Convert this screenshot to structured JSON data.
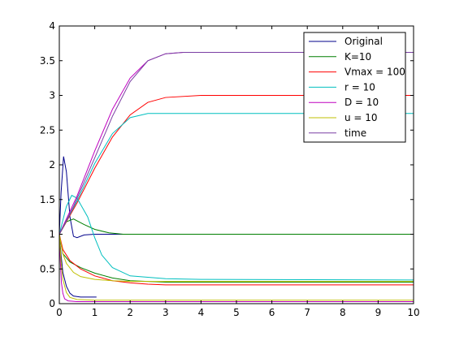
{
  "chart_data": {
    "type": "line",
    "title": "",
    "xlabel": "",
    "ylabel": "",
    "xlim": [
      0,
      10
    ],
    "ylim": [
      0,
      4
    ],
    "grid": false,
    "legend_position": "top-right",
    "x_ticks": [
      "0",
      "1",
      "2",
      "3",
      "4",
      "5",
      "6",
      "7",
      "8",
      "9",
      "10"
    ],
    "y_ticks": [
      "0",
      "0.5",
      "1",
      "1.5",
      "2",
      "2.5",
      "3",
      "3.5",
      "4"
    ],
    "series": [
      {
        "name": "Original",
        "color": "#00008b",
        "points": [
          [
            [
              0,
              1
            ],
            [
              0.05,
              1.6
            ],
            [
              0.12,
              2.12
            ],
            [
              0.2,
              1.9
            ],
            [
              0.3,
              1.25
            ],
            [
              0.4,
              0.97
            ],
            [
              0.5,
              0.95
            ],
            [
              0.7,
              0.99
            ],
            [
              1,
              1
            ],
            [
              10,
              1
            ]
          ],
          [
            [
              0,
              1
            ],
            [
              0.05,
              0.7
            ],
            [
              0.1,
              0.45
            ],
            [
              0.2,
              0.25
            ],
            [
              0.3,
              0.15
            ],
            [
              0.4,
              0.11
            ],
            [
              0.6,
              0.095
            ],
            [
              1.05,
              0.095
            ]
          ]
        ]
      },
      {
        "name": "K=10",
        "color": "#007f00",
        "points": [
          [
            [
              0,
              1
            ],
            [
              0.2,
              1.18
            ],
            [
              0.4,
              1.22
            ],
            [
              0.7,
              1.14
            ],
            [
              1,
              1.07
            ],
            [
              1.4,
              1.02
            ],
            [
              1.8,
              1.0
            ],
            [
              10,
              1.0
            ]
          ],
          [
            [
              0,
              1
            ],
            [
              0.1,
              0.72
            ],
            [
              0.3,
              0.6
            ],
            [
              0.6,
              0.52
            ],
            [
              1,
              0.44
            ],
            [
              1.5,
              0.37
            ],
            [
              2,
              0.33
            ],
            [
              3,
              0.31
            ],
            [
              5,
              0.31
            ],
            [
              10,
              0.31
            ]
          ]
        ]
      },
      {
        "name": "Vmax = 100",
        "color": "#ff0000",
        "points": [
          [
            [
              0,
              1
            ],
            [
              0.5,
              1.45
            ],
            [
              1,
              1.95
            ],
            [
              1.5,
              2.4
            ],
            [
              2,
              2.72
            ],
            [
              2.5,
              2.9
            ],
            [
              3,
              2.97
            ],
            [
              4,
              3.0
            ],
            [
              10,
              3.0
            ]
          ],
          [
            [
              0,
              1
            ],
            [
              0.1,
              0.78
            ],
            [
              0.3,
              0.62
            ],
            [
              0.6,
              0.5
            ],
            [
              1,
              0.4
            ],
            [
              1.5,
              0.33
            ],
            [
              2,
              0.3
            ],
            [
              2.5,
              0.28
            ],
            [
              3,
              0.27
            ],
            [
              10,
              0.27
            ]
          ]
        ]
      },
      {
        "name": "r = 10",
        "color": "#00bfbf",
        "points": [
          [
            [
              0,
              1
            ],
            [
              0.5,
              1.48
            ],
            [
              1,
              2.02
            ],
            [
              1.5,
              2.45
            ],
            [
              2,
              2.68
            ],
            [
              2.5,
              2.74
            ],
            [
              3,
              2.74
            ],
            [
              10,
              2.74
            ]
          ],
          [
            [
              0,
              1
            ],
            [
              0.2,
              1.4
            ],
            [
              0.35,
              1.56
            ],
            [
              0.5,
              1.52
            ],
            [
              0.8,
              1.25
            ],
            [
              1,
              0.95
            ],
            [
              1.2,
              0.7
            ],
            [
              1.5,
              0.52
            ],
            [
              2,
              0.4
            ],
            [
              3,
              0.36
            ],
            [
              4,
              0.35
            ],
            [
              10,
              0.34
            ]
          ]
        ]
      },
      {
        "name": "D = 10",
        "color": "#bf00bf",
        "points": [
          [
            [
              0,
              1
            ],
            [
              0.5,
              1.55
            ],
            [
              1,
              2.2
            ],
            [
              1.5,
              2.8
            ],
            [
              2,
              3.25
            ],
            [
              2.5,
              3.5
            ],
            [
              3,
              3.6
            ],
            [
              3.5,
              3.62
            ],
            [
              10,
              3.62
            ]
          ],
          [
            [
              0,
              1
            ],
            [
              0.03,
              0.6
            ],
            [
              0.06,
              0.3
            ],
            [
              0.1,
              0.15
            ],
            [
              0.15,
              0.07
            ],
            [
              0.25,
              0.04
            ],
            [
              0.5,
              0.03
            ],
            [
              10,
              0.03
            ]
          ]
        ]
      },
      {
        "name": "u = 10",
        "color": "#bfbf00",
        "points": [
          [
            [
              0,
              1
            ],
            [
              0.1,
              0.72
            ],
            [
              0.2,
              0.58
            ],
            [
              0.4,
              0.45
            ],
            [
              0.6,
              0.39
            ],
            [
              1,
              0.35
            ],
            [
              1.5,
              0.33
            ],
            [
              2,
              0.32
            ],
            [
              10,
              0.32
            ]
          ],
          [
            [
              0,
              1
            ],
            [
              0.05,
              0.6
            ],
            [
              0.1,
              0.35
            ],
            [
              0.2,
              0.16
            ],
            [
              0.3,
              0.09
            ],
            [
              0.5,
              0.06
            ],
            [
              1,
              0.05
            ],
            [
              10,
              0.05
            ]
          ]
        ]
      },
      {
        "name": "time",
        "color": "#7a3fa3",
        "points": [
          [
            [
              0,
              1
            ],
            [
              0.4,
              1.4
            ],
            [
              1,
              2.1
            ],
            [
              1.5,
              2.7
            ],
            [
              2,
              3.2
            ],
            [
              2.5,
              3.5
            ],
            [
              3,
              3.6
            ],
            [
              3.5,
              3.62
            ],
            [
              10,
              3.62
            ]
          ]
        ]
      }
    ]
  }
}
